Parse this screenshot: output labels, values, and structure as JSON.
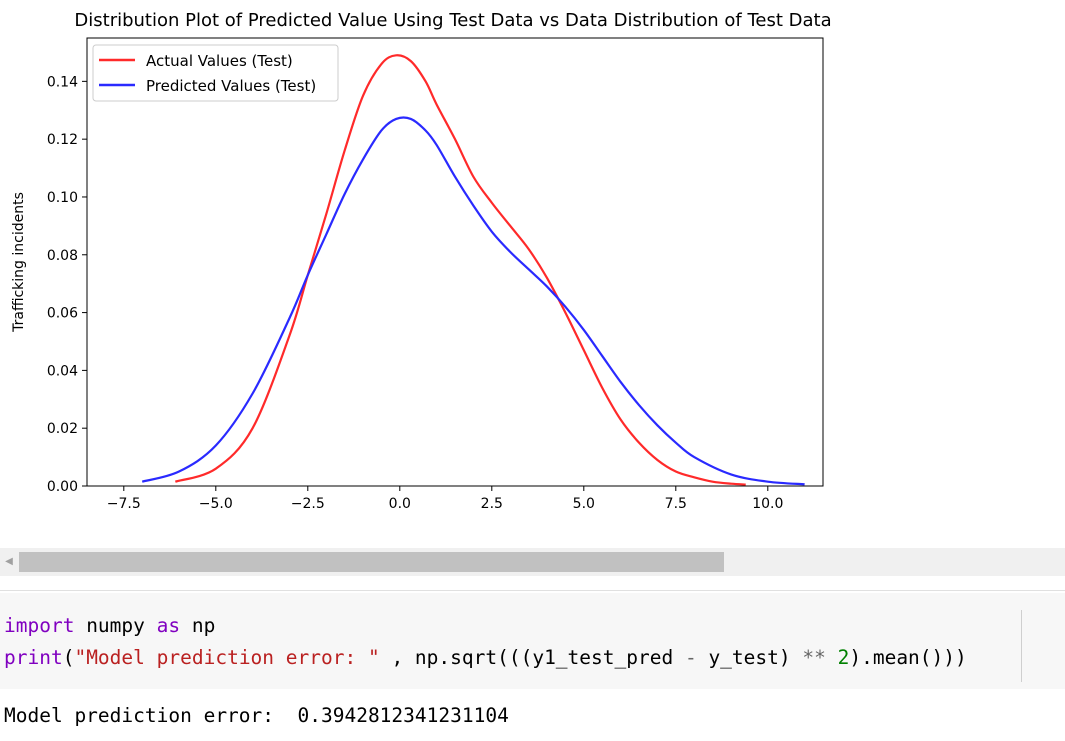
{
  "chart_data": {
    "type": "line",
    "title": "Distribution  Plot of  Predicted Value Using Test Data vs Data Distribution of Test Data",
    "xlabel": "",
    "ylabel": "Trafficking incidents",
    "xlim": [
      -8.5,
      11.5
    ],
    "ylim": [
      0,
      0.155
    ],
    "xticks": [
      -7.5,
      -5.0,
      -2.5,
      0.0,
      2.5,
      5.0,
      7.5,
      10.0
    ],
    "xtick_labels": [
      "−7.5",
      "−5.0",
      "−2.5",
      "0.0",
      "2.5",
      "5.0",
      "7.5",
      "10.0"
    ],
    "yticks": [
      0.0,
      0.02,
      0.04,
      0.06,
      0.08,
      0.1,
      0.12,
      0.14
    ],
    "ytick_labels": [
      "0.00",
      "0.02",
      "0.04",
      "0.06",
      "0.08",
      "0.10",
      "0.12",
      "0.14"
    ],
    "legend_position": "top-left",
    "grid": false,
    "series": [
      {
        "name": "Actual Values (Test)",
        "color": "#ff2a2a",
        "x": [
          -6.1,
          -5.0,
          -4.0,
          -3.0,
          -2.5,
          -2.0,
          -1.5,
          -1.0,
          -0.5,
          -0.1,
          0.3,
          0.7,
          1.0,
          1.5,
          2.0,
          2.5,
          3.0,
          3.5,
          4.0,
          4.5,
          5.0,
          5.5,
          6.0,
          6.5,
          7.0,
          7.5,
          8.0,
          8.5,
          9.0,
          9.4
        ],
        "y": [
          0.0015,
          0.006,
          0.02,
          0.052,
          0.073,
          0.094,
          0.116,
          0.135,
          0.146,
          0.149,
          0.147,
          0.14,
          0.132,
          0.12,
          0.107,
          0.098,
          0.09,
          0.082,
          0.072,
          0.06,
          0.047,
          0.034,
          0.023,
          0.015,
          0.009,
          0.005,
          0.003,
          0.0015,
          0.0008,
          0.0005
        ]
      },
      {
        "name": "Predicted Values (Test)",
        "color": "#2a2aff",
        "x": [
          -7.0,
          -6.0,
          -5.0,
          -4.0,
          -3.0,
          -2.5,
          -2.0,
          -1.5,
          -1.0,
          -0.5,
          -0.1,
          0.3,
          0.7,
          1.0,
          1.5,
          2.0,
          2.5,
          3.0,
          3.5,
          4.0,
          4.5,
          5.0,
          5.5,
          6.0,
          6.5,
          7.0,
          7.5,
          8.0,
          9.0,
          10.0,
          11.0
        ],
        "y": [
          0.0015,
          0.005,
          0.014,
          0.032,
          0.058,
          0.073,
          0.087,
          0.101,
          0.113,
          0.123,
          0.127,
          0.127,
          0.123,
          0.118,
          0.107,
          0.097,
          0.088,
          0.081,
          0.075,
          0.069,
          0.062,
          0.054,
          0.045,
          0.036,
          0.028,
          0.021,
          0.015,
          0.01,
          0.004,
          0.0015,
          0.0006
        ]
      }
    ]
  },
  "scrollbar": {
    "left_arrow_icon": "triangle-left-icon"
  },
  "code_cell": {
    "line1": {
      "kw_import": "import",
      "module": " numpy ",
      "kw_as": "as",
      "alias": " np"
    },
    "line2": {
      "fn_print": "print",
      "open_paren": "(",
      "string": "\"Model prediction error: \"",
      "mid": " , np.sqrt(((y1_test_pred ",
      "op_minus": "-",
      "mid2": " y_test) ",
      "op_pow": "**",
      "space": " ",
      "num": "2",
      "end": ").mean()))"
    }
  },
  "output": {
    "text": "Model prediction error:  0.3942812341231104"
  }
}
